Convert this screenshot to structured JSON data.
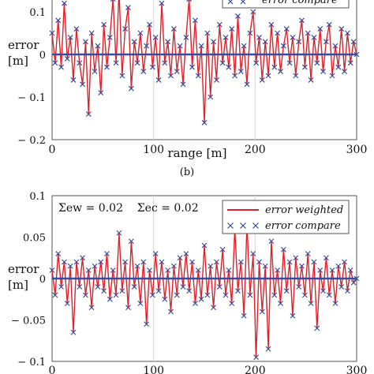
{
  "chart_data": [
    {
      "type": "line",
      "panel_caption": "(b)",
      "ylabel_line1": "error",
      "ylabel_line2": "[m]",
      "xlabel": "range [m]",
      "xlim": [
        0,
        300
      ],
      "ylim": [
        -0.2,
        0.15
      ],
      "x_tick_labels": [
        "0",
        "100",
        "200",
        "300"
      ],
      "x_ticks": [
        0,
        100,
        200,
        300
      ],
      "y_tick_labels": [
        "0.1",
        "0",
        "− 0.1",
        "− 0.2"
      ],
      "y_ticks": [
        0.1,
        0,
        -0.1,
        -0.2
      ],
      "grid": true,
      "legend_position": "top-right",
      "series": [
        {
          "name": "error compare",
          "style": "markers-x",
          "color": "#3a4a9a"
        }
      ],
      "x": [
        0,
        3,
        6,
        9,
        12,
        15,
        18,
        21,
        24,
        27,
        30,
        33,
        36,
        39,
        42,
        45,
        48,
        51,
        54,
        57,
        60,
        63,
        66,
        69,
        72,
        75,
        78,
        81,
        84,
        87,
        90,
        93,
        96,
        99,
        102,
        105,
        108,
        111,
        114,
        117,
        120,
        123,
        126,
        129,
        132,
        135,
        138,
        141,
        144,
        147,
        150,
        153,
        156,
        159,
        162,
        165,
        168,
        171,
        174,
        177,
        180,
        183,
        186,
        189,
        192,
        195,
        198,
        201,
        204,
        207,
        210,
        213,
        216,
        219,
        222,
        225,
        228,
        231,
        234,
        237,
        240,
        243,
        246,
        249,
        252,
        255,
        258,
        261,
        264,
        267,
        270,
        273,
        276,
        279,
        282,
        285,
        288,
        291,
        294,
        297,
        300
      ],
      "values": [
        0.05,
        -0.02,
        0.08,
        -0.03,
        0.12,
        -0.01,
        0.04,
        -0.06,
        0.06,
        -0.02,
        -0.07,
        0.03,
        -0.14,
        0.05,
        -0.04,
        0.02,
        -0.09,
        0.07,
        -0.03,
        0.04,
        0.13,
        -0.02,
        0.15,
        -0.05,
        0.06,
        0.11,
        -0.08,
        0.03,
        -0.02,
        0.05,
        -0.04,
        0.02,
        0.07,
        -0.03,
        0.04,
        -0.06,
        0.12,
        -0.02,
        0.03,
        -0.05,
        0.06,
        -0.04,
        0.02,
        -0.07,
        0.04,
        0.13,
        -0.03,
        0.08,
        -0.05,
        0.02,
        -0.16,
        0.05,
        -0.1,
        0.03,
        -0.06,
        0.07,
        -0.02,
        0.04,
        -0.03,
        0.06,
        -0.05,
        0.09,
        -0.04,
        0.02,
        -0.07,
        0.05,
        0.1,
        -0.02,
        0.04,
        -0.06,
        0.03,
        -0.05,
        0.07,
        -0.03,
        0.05,
        -0.04,
        0.02,
        0.06,
        -0.02,
        0.04,
        -0.05,
        0.03,
        0.08,
        -0.03,
        0.05,
        -0.06,
        0.04,
        -0.02,
        0.06,
        -0.04,
        0.03,
        0.07,
        -0.05,
        0.02,
        -0.03,
        0.06,
        -0.04,
        0.05,
        -0.02,
        0.03,
        0.0
      ]
    },
    {
      "type": "line",
      "panel_caption": "",
      "ylabel_line1": "error",
      "ylabel_line2": "[m]",
      "xlabel": "",
      "xlim": [
        0,
        300
      ],
      "ylim": [
        -0.1,
        0.1
      ],
      "x_tick_labels": [
        "0",
        "100",
        "200",
        "300"
      ],
      "x_ticks": [
        0,
        100,
        200,
        300
      ],
      "y_tick_labels": [
        "0.1",
        "0.05",
        "0",
        "− 0.05",
        "− 0.1"
      ],
      "y_ticks": [
        0.1,
        0.05,
        0,
        -0.05,
        -0.1
      ],
      "grid": true,
      "annotation": "Σew = 0.02    Σec = 0.02",
      "legend_position": "top-right",
      "series": [
        {
          "name": "error weighted",
          "style": "line",
          "color": "#e0202a"
        },
        {
          "name": "error compare",
          "style": "markers-x",
          "color": "#3a4a9a"
        }
      ],
      "x": [
        0,
        3,
        6,
        9,
        12,
        15,
        18,
        21,
        24,
        27,
        30,
        33,
        36,
        39,
        42,
        45,
        48,
        51,
        54,
        57,
        60,
        63,
        66,
        69,
        72,
        75,
        78,
        81,
        84,
        87,
        90,
        93,
        96,
        99,
        102,
        105,
        108,
        111,
        114,
        117,
        120,
        123,
        126,
        129,
        132,
        135,
        138,
        141,
        144,
        147,
        150,
        153,
        156,
        159,
        162,
        165,
        168,
        171,
        174,
        177,
        180,
        183,
        186,
        189,
        192,
        195,
        198,
        201,
        204,
        207,
        210,
        213,
        216,
        219,
        222,
        225,
        228,
        231,
        234,
        237,
        240,
        243,
        246,
        249,
        252,
        255,
        258,
        261,
        264,
        267,
        270,
        273,
        276,
        279,
        282,
        285,
        288,
        291,
        294,
        297,
        300
      ],
      "values": [
        0.01,
        -0.02,
        0.03,
        -0.01,
        0.02,
        -0.03,
        0.015,
        -0.065,
        0.02,
        -0.01,
        0.025,
        -0.02,
        0.01,
        -0.035,
        0.015,
        -0.01,
        0.02,
        -0.015,
        0.03,
        -0.025,
        0.01,
        -0.02,
        0.055,
        -0.015,
        0.02,
        -0.035,
        0.045,
        -0.01,
        0.015,
        -0.03,
        0.02,
        -0.055,
        0.01,
        -0.02,
        0.03,
        -0.015,
        0.02,
        -0.025,
        0.01,
        -0.04,
        0.015,
        -0.02,
        0.025,
        -0.01,
        0.03,
        -0.015,
        0.02,
        -0.03,
        0.01,
        -0.025,
        0.04,
        -0.02,
        0.015,
        -0.035,
        0.02,
        -0.01,
        0.035,
        -0.02,
        0.01,
        -0.03,
        0.06,
        -0.015,
        0.02,
        -0.045,
        0.065,
        -0.02,
        0.03,
        -0.095,
        0.02,
        -0.04,
        0.015,
        -0.085,
        0.045,
        -0.02,
        0.01,
        -0.03,
        0.035,
        -0.015,
        0.02,
        -0.045,
        0.025,
        -0.01,
        0.015,
        -0.02,
        0.03,
        -0.03,
        0.02,
        -0.06,
        0.01,
        -0.015,
        0.025,
        -0.02,
        0.01,
        -0.03,
        0.015,
        -0.01,
        0.02,
        -0.015,
        0.01,
        -0.005,
        0.0
      ]
    }
  ]
}
